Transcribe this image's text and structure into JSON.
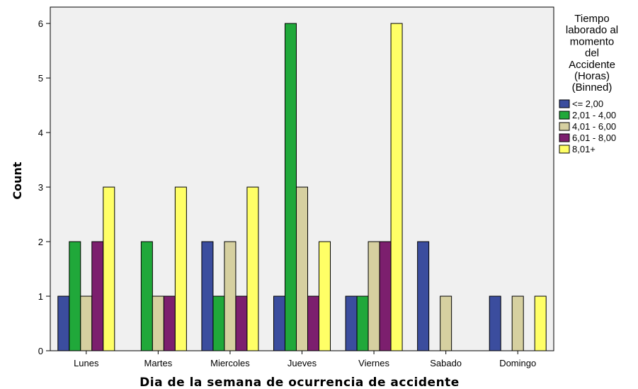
{
  "chart_data": {
    "type": "bar",
    "title": "",
    "xlabel": "Dia de la semana de ocurrencia de accidente",
    "ylabel": "Count",
    "ylim": [
      0,
      6.3
    ],
    "yticks": [
      0,
      1,
      2,
      3,
      4,
      5,
      6
    ],
    "grid": false,
    "legend_position": "right",
    "legend_title_lines": [
      "Tiempo",
      "laborado al",
      "momento",
      "del",
      "Accidente",
      "(Horas)",
      "(Binned)"
    ],
    "categories": [
      "Lunes",
      "Martes",
      "Miercoles",
      "Jueves",
      "Viernes",
      "Sabado",
      "Domingo"
    ],
    "series": [
      {
        "name": "<= 2,00",
        "color": "#3b4d9e",
        "values": [
          1,
          0,
          2,
          1,
          1,
          2,
          1
        ]
      },
      {
        "name": "2,01 - 4,00",
        "color": "#20a83a",
        "values": [
          2,
          2,
          1,
          6,
          1,
          0,
          0
        ]
      },
      {
        "name": "4,01 - 6,00",
        "color": "#d6d0a0",
        "values": [
          1,
          1,
          2,
          3,
          2,
          1,
          1
        ]
      },
      {
        "name": "6,01 - 8,00",
        "color": "#7c1f6e",
        "values": [
          2,
          1,
          1,
          1,
          2,
          0,
          0
        ]
      },
      {
        "name": "8,01+",
        "color": "#ffff66",
        "values": [
          3,
          3,
          3,
          2,
          6,
          0,
          1
        ]
      }
    ],
    "plot_background": "#f0f0f0"
  }
}
